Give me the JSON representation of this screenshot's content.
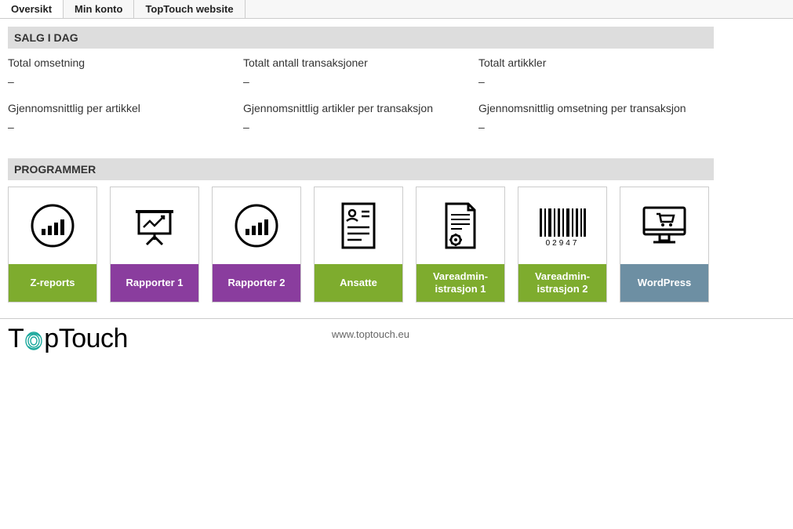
{
  "nav": {
    "tabs": [
      {
        "label": "Oversikt",
        "active": true
      },
      {
        "label": "Min konto",
        "active": false
      },
      {
        "label": "TopTouch website",
        "active": false
      }
    ]
  },
  "sections": {
    "sales_today": {
      "title": "SALG I DAG",
      "stats": [
        {
          "label": "Total omsetning",
          "value": "–"
        },
        {
          "label": "Totalt antall transaksjoner",
          "value": "–"
        },
        {
          "label": "Totalt artikkler",
          "value": "–"
        },
        {
          "label": "Gjennomsnittlig per artikkel",
          "value": "–"
        },
        {
          "label": "Gjennomsnittlig artikler per transaksjon",
          "value": "–"
        },
        {
          "label": "Gjennomsnittlig omsetning per transaksjon",
          "value": "–"
        }
      ]
    },
    "programs": {
      "title": "PROGRAMMER",
      "tiles": [
        {
          "label": "Z-reports",
          "icon": "chart-circle",
          "color": "#7eac2e"
        },
        {
          "label": "Rapporter 1",
          "icon": "presentation",
          "color": "#8a3d9e"
        },
        {
          "label": "Rapporter 2",
          "icon": "chart-circle",
          "color": "#8a3d9e"
        },
        {
          "label": "Ansatte",
          "icon": "employee-doc",
          "color": "#7eac2e"
        },
        {
          "label": "Vareadmin-istrasjon 1",
          "icon": "doc-gear",
          "color": "#7eac2e"
        },
        {
          "label": "Vareadmin-istrasjon 2",
          "icon": "barcode",
          "color": "#7eac2e"
        },
        {
          "label": "WordPress",
          "icon": "ecommerce-monitor",
          "color": "#6d8fa3"
        }
      ]
    }
  },
  "footer": {
    "brand_prefix": "T",
    "brand_suffix": "pTouch",
    "url": "www.toptouch.eu"
  },
  "colors": {
    "section_header_bg": "#ddd",
    "tile_border": "#cccccc",
    "green": "#7eac2e",
    "purple": "#8a3d9e",
    "bluegray": "#6d8fa3",
    "fingerprint": "#1aa89c"
  }
}
